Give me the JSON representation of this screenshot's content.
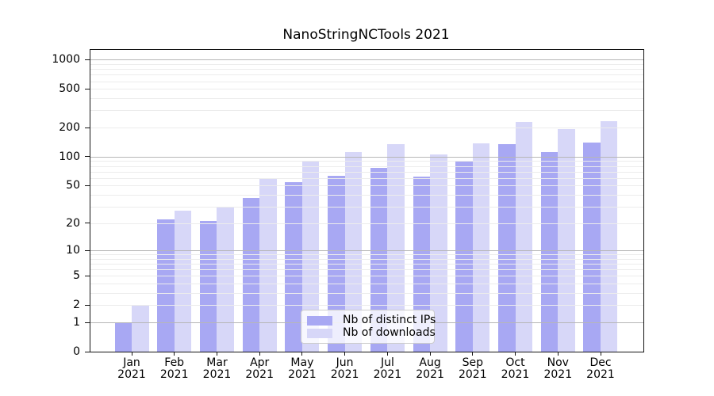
{
  "title": "NanoStringNCTools 2021",
  "chart_data": {
    "type": "bar",
    "title": "NanoStringNCTools 2021",
    "xlabel": "",
    "ylabel": "",
    "yscale": "log1p",
    "ylim": [
      0,
      1260
    ],
    "yticks": [
      0,
      1,
      2,
      5,
      10,
      20,
      50,
      100,
      200,
      500,
      1000
    ],
    "grid": "horizontal-log-minors-over-bars",
    "legend_position": "lower-center",
    "categories": [
      "Jan 2021",
      "Feb 2021",
      "Mar 2021",
      "Apr 2021",
      "May 2021",
      "Jun 2021",
      "Jul 2021",
      "Aug 2021",
      "Sep 2021",
      "Oct 2021",
      "Nov 2021",
      "Dec 2021"
    ],
    "month_labels": [
      "Jan",
      "Feb",
      "Mar",
      "Apr",
      "May",
      "Jun",
      "Jul",
      "Aug",
      "Sep",
      "Oct",
      "Nov",
      "Dec"
    ],
    "year_label": "2021",
    "series": [
      {
        "name": "Nb of distinct IPs",
        "color": "#a8a8f3",
        "values": [
          1,
          22,
          21,
          37,
          54,
          63,
          76,
          62,
          91,
          134,
          112,
          141
        ]
      },
      {
        "name": "Nb of downloads",
        "color": "#d7d7f8",
        "values": [
          2,
          27,
          30,
          59,
          90,
          111,
          134,
          106,
          138,
          228,
          192,
          232
        ]
      }
    ]
  },
  "colors": {
    "bar_distinct_ips": "#a8a8f3",
    "bar_downloads": "#d7d7f8",
    "grid_major": "#b6b6b6",
    "grid_minor": "#ececec",
    "axis": "#141414",
    "legend_border": "#cccccc"
  }
}
